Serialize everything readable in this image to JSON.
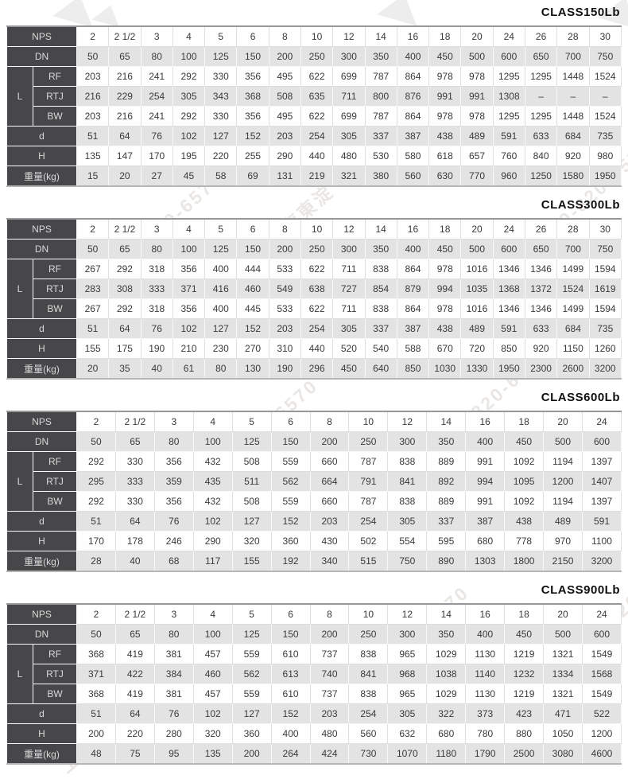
{
  "watermark": {
    "text": "上海東淀 800-820-6570"
  },
  "row_labels": {
    "nps": "NPS",
    "dn": "DN",
    "l": "L",
    "rf": "RF",
    "rtj": "RTJ",
    "bw": "BW",
    "d": "d",
    "h": "H",
    "weight": "重量(kg)"
  },
  "colors": {
    "header_bg": "#47474a",
    "row_alt_bg": "#e3e3e3",
    "title_color": "#101010"
  },
  "tables": [
    {
      "title": "CLASS150Lb",
      "nps": [
        "2",
        "2 1/2",
        "3",
        "4",
        "5",
        "6",
        "8",
        "10",
        "12",
        "14",
        "16",
        "18",
        "20",
        "24",
        "26",
        "28",
        "30"
      ],
      "dn": [
        "50",
        "65",
        "80",
        "100",
        "125",
        "150",
        "200",
        "250",
        "300",
        "350",
        "400",
        "450",
        "500",
        "600",
        "650",
        "700",
        "750"
      ],
      "rf": [
        "203",
        "216",
        "241",
        "292",
        "330",
        "356",
        "495",
        "622",
        "699",
        "787",
        "864",
        "978",
        "978",
        "1295",
        "1295",
        "1448",
        "1524"
      ],
      "rtj": [
        "216",
        "229",
        "254",
        "305",
        "343",
        "368",
        "508",
        "635",
        "711",
        "800",
        "876",
        "991",
        "991",
        "1308",
        "–",
        "–",
        "–"
      ],
      "bw": [
        "203",
        "216",
        "241",
        "292",
        "330",
        "356",
        "495",
        "622",
        "699",
        "787",
        "864",
        "978",
        "978",
        "1295",
        "1295",
        "1448",
        "1524"
      ],
      "d": [
        "51",
        "64",
        "76",
        "102",
        "127",
        "152",
        "203",
        "254",
        "305",
        "337",
        "387",
        "438",
        "489",
        "591",
        "633",
        "684",
        "735"
      ],
      "h": [
        "135",
        "147",
        "170",
        "195",
        "220",
        "255",
        "290",
        "440",
        "480",
        "530",
        "580",
        "618",
        "657",
        "760",
        "840",
        "920",
        "980"
      ],
      "weight": [
        "15",
        "20",
        "27",
        "45",
        "58",
        "69",
        "131",
        "219",
        "321",
        "380",
        "560",
        "630",
        "770",
        "960",
        "1250",
        "1580",
        "1950"
      ]
    },
    {
      "title": "CLASS300Lb",
      "nps": [
        "2",
        "2 1/2",
        "3",
        "4",
        "5",
        "6",
        "8",
        "10",
        "12",
        "14",
        "16",
        "18",
        "20",
        "24",
        "26",
        "28",
        "30"
      ],
      "dn": [
        "50",
        "65",
        "80",
        "100",
        "125",
        "150",
        "200",
        "250",
        "300",
        "350",
        "400",
        "450",
        "500",
        "600",
        "650",
        "700",
        "750"
      ],
      "rf": [
        "267",
        "292",
        "318",
        "356",
        "400",
        "444",
        "533",
        "622",
        "711",
        "838",
        "864",
        "978",
        "1016",
        "1346",
        "1346",
        "1499",
        "1594"
      ],
      "rtj": [
        "283",
        "308",
        "333",
        "371",
        "416",
        "460",
        "549",
        "638",
        "727",
        "854",
        "879",
        "994",
        "1035",
        "1368",
        "1372",
        "1524",
        "1619"
      ],
      "bw": [
        "267",
        "292",
        "318",
        "356",
        "400",
        "445",
        "533",
        "622",
        "711",
        "838",
        "864",
        "978",
        "1016",
        "1346",
        "1346",
        "1499",
        "1594"
      ],
      "d": [
        "51",
        "64",
        "76",
        "102",
        "127",
        "152",
        "203",
        "254",
        "305",
        "337",
        "387",
        "438",
        "489",
        "591",
        "633",
        "684",
        "735"
      ],
      "h": [
        "155",
        "175",
        "190",
        "210",
        "230",
        "270",
        "310",
        "440",
        "520",
        "540",
        "588",
        "670",
        "720",
        "850",
        "920",
        "1150",
        "1260"
      ],
      "weight": [
        "20",
        "35",
        "40",
        "61",
        "80",
        "130",
        "190",
        "296",
        "450",
        "640",
        "850",
        "1030",
        "1330",
        "1950",
        "2300",
        "2600",
        "3200"
      ]
    },
    {
      "title": "CLASS600Lb",
      "nps": [
        "2",
        "2 1/2",
        "3",
        "4",
        "5",
        "6",
        "8",
        "10",
        "12",
        "14",
        "16",
        "18",
        "20",
        "24"
      ],
      "dn": [
        "50",
        "65",
        "80",
        "100",
        "125",
        "150",
        "200",
        "250",
        "300",
        "350",
        "400",
        "450",
        "500",
        "600"
      ],
      "rf": [
        "292",
        "330",
        "356",
        "432",
        "508",
        "559",
        "660",
        "787",
        "838",
        "889",
        "991",
        "1092",
        "1194",
        "1397"
      ],
      "rtj": [
        "295",
        "333",
        "359",
        "435",
        "511",
        "562",
        "664",
        "791",
        "841",
        "892",
        "994",
        "1095",
        "1200",
        "1407"
      ],
      "bw": [
        "292",
        "330",
        "356",
        "432",
        "508",
        "559",
        "660",
        "787",
        "838",
        "889",
        "991",
        "1092",
        "1194",
        "1397"
      ],
      "d": [
        "51",
        "64",
        "76",
        "102",
        "127",
        "152",
        "203",
        "254",
        "305",
        "337",
        "387",
        "438",
        "489",
        "591"
      ],
      "h": [
        "170",
        "178",
        "246",
        "290",
        "320",
        "360",
        "430",
        "502",
        "554",
        "595",
        "680",
        "778",
        "970",
        "1100"
      ],
      "weight": [
        "28",
        "40",
        "68",
        "117",
        "155",
        "192",
        "340",
        "515",
        "750",
        "890",
        "1303",
        "1800",
        "2150",
        "3200"
      ]
    },
    {
      "title": "CLASS900Lb",
      "nps": [
        "2",
        "2 1/2",
        "3",
        "4",
        "5",
        "6",
        "8",
        "10",
        "12",
        "14",
        "16",
        "18",
        "20",
        "24"
      ],
      "dn": [
        "50",
        "65",
        "80",
        "100",
        "125",
        "150",
        "200",
        "250",
        "300",
        "350",
        "400",
        "450",
        "500",
        "600"
      ],
      "rf": [
        "368",
        "419",
        "381",
        "457",
        "559",
        "610",
        "737",
        "838",
        "965",
        "1029",
        "1130",
        "1219",
        "1321",
        "1549"
      ],
      "rtj": [
        "371",
        "422",
        "384",
        "460",
        "562",
        "613",
        "740",
        "841",
        "968",
        "1038",
        "1140",
        "1232",
        "1334",
        "1568"
      ],
      "bw": [
        "368",
        "419",
        "381",
        "457",
        "559",
        "610",
        "737",
        "838",
        "965",
        "1029",
        "1130",
        "1219",
        "1321",
        "1549"
      ],
      "d": [
        "51",
        "64",
        "76",
        "102",
        "127",
        "152",
        "203",
        "254",
        "305",
        "322",
        "373",
        "423",
        "471",
        "522"
      ],
      "h": [
        "200",
        "220",
        "280",
        "320",
        "360",
        "400",
        "480",
        "560",
        "632",
        "680",
        "780",
        "880",
        "1050",
        "1200"
      ],
      "weight": [
        "48",
        "75",
        "95",
        "135",
        "200",
        "264",
        "424",
        "730",
        "1070",
        "1180",
        "1790",
        "2500",
        "3080",
        "4600"
      ]
    }
  ]
}
